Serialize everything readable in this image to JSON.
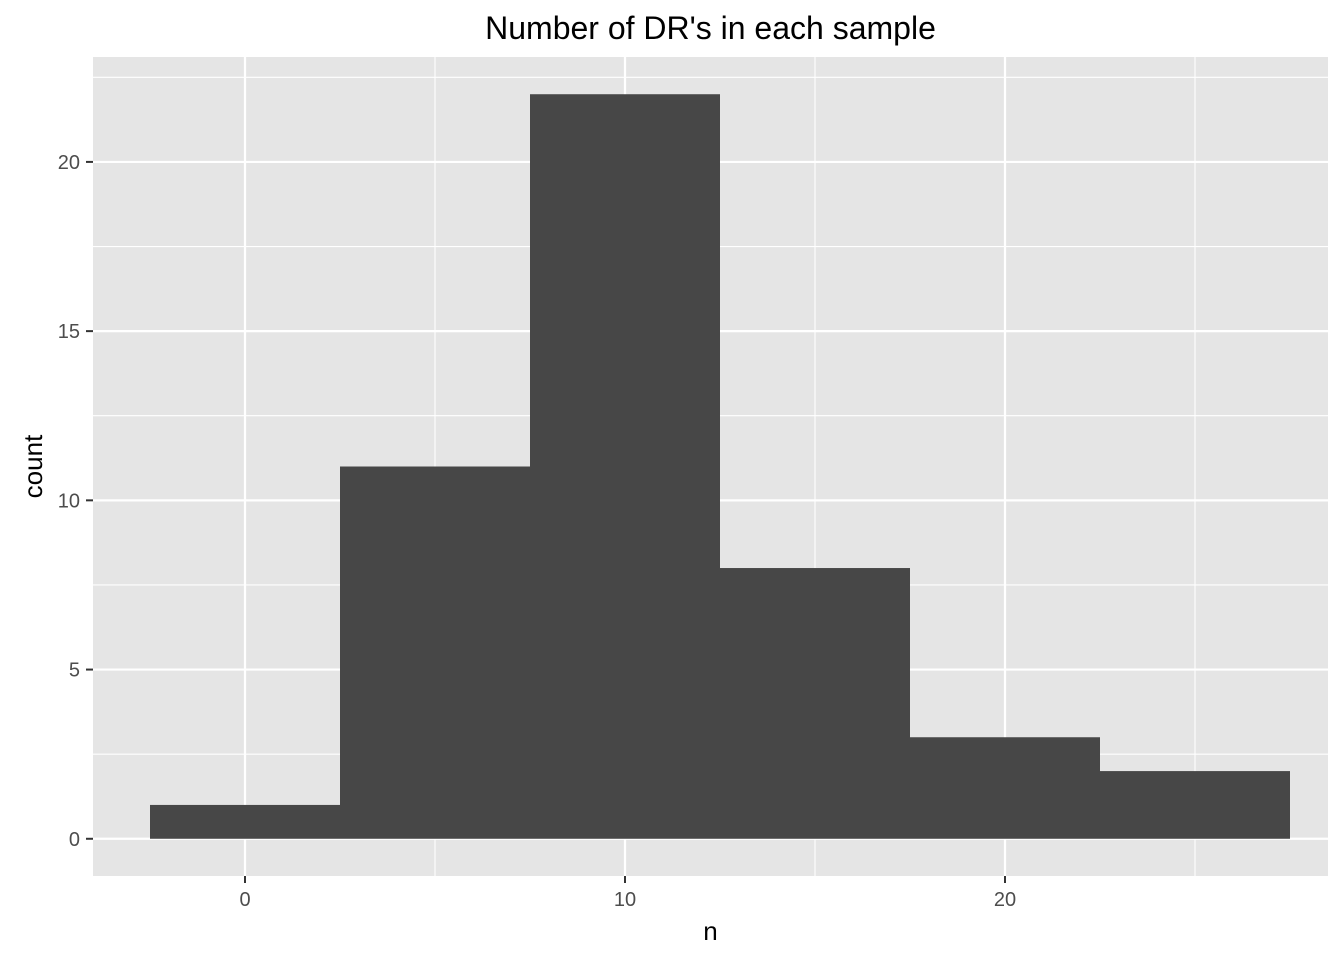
{
  "chart_data": {
    "type": "bar",
    "title": "Number of DR's in each sample",
    "xlabel": "n",
    "ylabel": "count",
    "bins": [
      {
        "x_start": -2.5,
        "x_end": 2.5,
        "count": 1
      },
      {
        "x_start": 2.5,
        "x_end": 7.5,
        "count": 11
      },
      {
        "x_start": 7.5,
        "x_end": 12.5,
        "count": 22
      },
      {
        "x_start": 12.5,
        "x_end": 17.5,
        "count": 8
      },
      {
        "x_start": 17.5,
        "x_end": 22.5,
        "count": 3
      },
      {
        "x_start": 22.5,
        "x_end": 27.5,
        "count": 2
      }
    ],
    "x_ticks": [
      0,
      10,
      20
    ],
    "x_tick_labels": [
      "0",
      "10",
      "20"
    ],
    "x_minor_gridlines": [
      5,
      15,
      25
    ],
    "y_ticks": [
      0,
      5,
      10,
      15,
      20
    ],
    "y_tick_labels": [
      "0",
      "5",
      "10",
      "15",
      "20"
    ],
    "y_minor_gridlines": [
      2.5,
      7.5,
      12.5,
      17.5,
      22.5
    ],
    "xlim": [
      -4,
      28.5
    ],
    "ylim": [
      -1.1,
      23.1
    ],
    "grid": true,
    "legend": "none",
    "colors": {
      "panel_background": "#e5e5e5",
      "grid": "#ffffff",
      "bar_fill": "#474747"
    }
  }
}
